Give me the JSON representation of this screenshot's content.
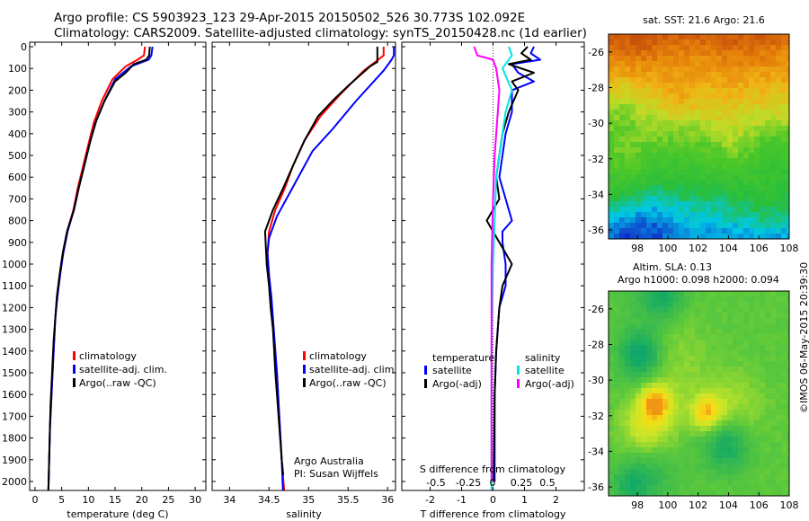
{
  "title_line1": "Argo profile: CS 5903923_123 29-Apr-2015 20150502_526 30.773S 102.092E",
  "title_line2": "Climatology: CARS2009. Satellite-adjusted climatology: synTS_20150428.nc (1d earlier)",
  "depth_ticks": [
    0,
    100,
    200,
    300,
    400,
    500,
    600,
    700,
    800,
    900,
    1000,
    1100,
    1200,
    1300,
    1400,
    1500,
    1600,
    1700,
    1800,
    1900,
    2000
  ],
  "colors": {
    "climatology": "#ff0000",
    "satellite": "#0000ff",
    "argo": "#000000",
    "sat_salinity": "#00e5e5",
    "argo_salinity": "#ff00ff"
  },
  "chart_data": [
    {
      "type": "line",
      "xlabel": "temperature (deg C)",
      "ylim": [
        2080,
        0
      ],
      "xlim": [
        -1,
        32
      ],
      "x_ticks": [
        0,
        5,
        10,
        15,
        20,
        25,
        30
      ],
      "legend": {
        "labels": [
          "climatology",
          "satellite-adj. clim.",
          "Argo(..raw -QC)"
        ],
        "placement": "lower-right"
      },
      "series": [
        {
          "name": "climatology",
          "color": "#ff0000",
          "points": [
            [
              20.6,
              0
            ],
            [
              20.4,
              40
            ],
            [
              19.2,
              60
            ],
            [
              17,
              90
            ],
            [
              14.5,
              150
            ],
            [
              12.5,
              250
            ],
            [
              11,
              350
            ],
            [
              10,
              450
            ],
            [
              9,
              550
            ],
            [
              8,
              650
            ],
            [
              7.2,
              750
            ],
            [
              6,
              850
            ],
            [
              5.2,
              950
            ],
            [
              4.6,
              1050
            ],
            [
              4.1,
              1150
            ],
            [
              3.8,
              1250
            ],
            [
              3.6,
              1350
            ],
            [
              3.4,
              1450
            ],
            [
              3.2,
              1550
            ],
            [
              3,
              1650
            ],
            [
              2.8,
              1750
            ],
            [
              2.7,
              1850
            ],
            [
              2.6,
              1950
            ],
            [
              2.5,
              2050
            ],
            [
              2.5,
              2080
            ]
          ]
        },
        {
          "name": "satellite-adj. clim.",
          "color": "#0000ff",
          "points": [
            [
              22,
              0
            ],
            [
              21.8,
              40
            ],
            [
              21.3,
              60
            ],
            [
              18,
              90
            ],
            [
              15,
              150
            ],
            [
              13,
              250
            ],
            [
              11.3,
              350
            ],
            [
              10.2,
              450
            ],
            [
              9.2,
              550
            ],
            [
              8.2,
              650
            ],
            [
              7.3,
              750
            ],
            [
              6.1,
              850
            ],
            [
              5.3,
              950
            ],
            [
              4.7,
              1050
            ],
            [
              4.2,
              1150
            ],
            [
              3.8,
              1250
            ],
            [
              3.6,
              1350
            ],
            [
              3.4,
              1450
            ],
            [
              3.2,
              1550
            ],
            [
              3,
              1650
            ],
            [
              2.8,
              1750
            ],
            [
              2.7,
              1850
            ],
            [
              2.6,
              1950
            ],
            [
              2.5,
              2050
            ],
            [
              2.5,
              2080
            ]
          ]
        },
        {
          "name": "Argo(..raw -QC)",
          "color": "#000000",
          "points": [
            [
              21.5,
              0
            ],
            [
              21.4,
              40
            ],
            [
              20.8,
              60
            ],
            [
              18.5,
              80
            ],
            [
              17,
              120
            ],
            [
              15,
              160
            ],
            [
              13,
              250
            ],
            [
              11.5,
              340
            ],
            [
              10.4,
              430
            ],
            [
              9.2,
              550
            ],
            [
              8.2,
              650
            ],
            [
              7.3,
              750
            ],
            [
              6,
              850
            ],
            [
              5.2,
              950
            ],
            [
              4.6,
              1050
            ],
            [
              4.1,
              1150
            ],
            [
              3.8,
              1250
            ],
            [
              3.5,
              1350
            ],
            [
              3.3,
              1450
            ],
            [
              3.1,
              1550
            ],
            [
              2.9,
              1650
            ],
            [
              2.8,
              1750
            ],
            [
              2.7,
              1850
            ],
            [
              2.6,
              1950
            ],
            [
              2.5,
              2040
            ]
          ]
        }
      ]
    },
    {
      "type": "line",
      "xlabel": "salinity",
      "ylim": [
        2080,
        0
      ],
      "xlim": [
        33.78,
        36.1
      ],
      "x_ticks": [
        34,
        34.5,
        35,
        35.5,
        36
      ],
      "legend": {
        "labels": [
          "climatology",
          "satellite-adj. clim.",
          "Argo(..raw -QC)"
        ],
        "placement": "lower-right"
      },
      "annotation": [
        "Argo Australia",
        "PI: Susan Wijffels"
      ],
      "series": [
        {
          "name": "climatology",
          "color": "#ff0000",
          "points": [
            [
              35.95,
              0
            ],
            [
              35.95,
              40
            ],
            [
              35.88,
              60
            ],
            [
              35.7,
              110
            ],
            [
              35.4,
              220
            ],
            [
              35.15,
              320
            ],
            [
              34.95,
              430
            ],
            [
              34.8,
              550
            ],
            [
              34.7,
              650
            ],
            [
              34.58,
              750
            ],
            [
              34.5,
              850
            ],
            [
              34.48,
              950
            ],
            [
              34.5,
              1050
            ],
            [
              34.52,
              1150
            ],
            [
              34.55,
              1300
            ],
            [
              34.6,
              1500
            ],
            [
              34.63,
              1700
            ],
            [
              34.66,
              1900
            ],
            [
              34.7,
              2080
            ]
          ]
        },
        {
          "name": "satellite-adj. clim.",
          "color": "#0000ff",
          "points": [
            [
              36.08,
              0
            ],
            [
              36.08,
              40
            ],
            [
              36.05,
              60
            ],
            [
              35.95,
              110
            ],
            [
              35.6,
              250
            ],
            [
              35.3,
              380
            ],
            [
              35.05,
              480
            ],
            [
              34.9,
              580
            ],
            [
              34.75,
              680
            ],
            [
              34.6,
              780
            ],
            [
              34.5,
              880
            ],
            [
              34.48,
              950
            ],
            [
              34.5,
              1050
            ],
            [
              34.53,
              1150
            ],
            [
              34.56,
              1300
            ],
            [
              34.6,
              1500
            ],
            [
              34.63,
              1700
            ],
            [
              34.66,
              1900
            ],
            [
              34.68,
              2080
            ]
          ]
        },
        {
          "name": "Argo(..raw -QC)",
          "color": "#000000",
          "points": [
            [
              35.87,
              0
            ],
            [
              35.87,
              70
            ],
            [
              35.78,
              90
            ],
            [
              35.5,
              180
            ],
            [
              35.3,
              250
            ],
            [
              35.12,
              320
            ],
            [
              34.95,
              430
            ],
            [
              34.8,
              550
            ],
            [
              34.68,
              650
            ],
            [
              34.55,
              750
            ],
            [
              34.45,
              850
            ],
            [
              34.47,
              1000
            ],
            [
              34.5,
              1100
            ],
            [
              34.52,
              1200
            ],
            [
              34.55,
              1300
            ],
            [
              34.58,
              1500
            ],
            [
              34.62,
              1700
            ],
            [
              34.66,
              1900
            ],
            [
              34.68,
              1970
            ]
          ]
        }
      ]
    },
    {
      "type": "line",
      "xlabel": "T difference from climatology",
      "top_axis_label": "S difference from climatology",
      "ylim": [
        2080,
        0
      ],
      "xlim": [
        -2.9,
        2.9
      ],
      "x_ticks": [
        -2,
        -1,
        0,
        1,
        2
      ],
      "top_ticks": [
        "-0.5",
        "-0.25",
        "0",
        "0.25",
        "0.5"
      ],
      "legend": {
        "temperature_heading": "temperature",
        "salinity_heading": "salinity",
        "labels": [
          "satellite",
          "Argo(-adj)",
          "satellite",
          "Argo(-adj)"
        ],
        "placement": "lower"
      },
      "series": [
        {
          "name": "satellite",
          "color": "#0000ff",
          "points": [
            [
              1.3,
              0
            ],
            [
              1.2,
              30
            ],
            [
              1.5,
              60
            ],
            [
              0.6,
              80
            ],
            [
              0.8,
              120
            ],
            [
              1.3,
              160
            ],
            [
              0.6,
              200
            ],
            [
              0.6,
              300
            ],
            [
              0.4,
              400
            ],
            [
              0.3,
              500
            ],
            [
              0.2,
              600
            ],
            [
              0.3,
              650
            ],
            [
              0.4,
              700
            ],
            [
              0.6,
              800
            ],
            [
              0.3,
              850
            ],
            [
              0.3,
              900
            ],
            [
              0.4,
              1000
            ],
            [
              0.4,
              1100
            ],
            [
              0.2,
              1200
            ],
            [
              0.1,
              1400
            ],
            [
              0.05,
              1600
            ],
            [
              0.05,
              2000
            ]
          ]
        },
        {
          "name": "Argo(-adj)",
          "color": "#000000",
          "points": [
            [
              1.1,
              0
            ],
            [
              0.9,
              30
            ],
            [
              1.2,
              60
            ],
            [
              0.5,
              80
            ],
            [
              1.3,
              120
            ],
            [
              0.6,
              160
            ],
            [
              0.8,
              200
            ],
            [
              0.5,
              300
            ],
            [
              0.3,
              400
            ],
            [
              0.2,
              500
            ],
            [
              0.1,
              600
            ],
            [
              0.2,
              700
            ],
            [
              -0.2,
              800
            ],
            [
              0.2,
              900
            ],
            [
              0.6,
              1000
            ],
            [
              0.3,
              1100
            ],
            [
              0.2,
              1200
            ],
            [
              0.1,
              1400
            ],
            [
              0.05,
              1600
            ],
            [
              0.02,
              2000
            ]
          ]
        },
        {
          "name": "satellite",
          "color": "#00e5e5",
          "points": [
            [
              0.5,
              0
            ],
            [
              0.6,
              40
            ],
            [
              0.3,
              100
            ],
            [
              0.6,
              200
            ],
            [
              0.4,
              300
            ],
            [
              0.3,
              400
            ],
            [
              0.2,
              500
            ],
            [
              0.1,
              600
            ],
            [
              0.05,
              800
            ],
            [
              0,
              1000
            ],
            [
              -0.05,
              1400
            ],
            [
              -0.05,
              2080
            ]
          ]
        },
        {
          "name": "Argo(-adj)",
          "color": "#ff00ff",
          "points": [
            [
              -0.6,
              0
            ],
            [
              -0.5,
              40
            ],
            [
              0.0,
              60
            ],
            [
              0.1,
              100
            ],
            [
              0.2,
              200
            ],
            [
              0.15,
              300
            ],
            [
              0.05,
              500
            ],
            [
              0,
              700
            ],
            [
              -0.05,
              1000
            ],
            [
              -0.05,
              1500
            ],
            [
              -0.05,
              2000
            ]
          ]
        }
      ]
    },
    {
      "type": "heatmap",
      "title": "sat. SST: 21.6  Argo: 21.6",
      "x_ticks": [
        "98",
        "100",
        "102",
        "104",
        "106",
        "108"
      ],
      "y_ticks": [
        "-26",
        "-28",
        "-30",
        "-32",
        "-34",
        "-36"
      ],
      "xlim": [
        96.1,
        108
      ],
      "ylim": [
        -36.5,
        -25
      ]
    },
    {
      "type": "heatmap",
      "title": "Altim. SLA: 0.13",
      "subtitle": "Argo h1000: 0.098  h2000: 0.094",
      "x_ticks": [
        "98",
        "100",
        "102",
        "104",
        "106",
        "108"
      ],
      "y_ticks": [
        "-26",
        "-28",
        "-30",
        "-32",
        "-34",
        "-36"
      ],
      "xlim": [
        96.1,
        108
      ],
      "ylim": [
        -36.5,
        -25
      ]
    }
  ],
  "side_stamp": "©IMOS 06-May-2015 20:39:30"
}
